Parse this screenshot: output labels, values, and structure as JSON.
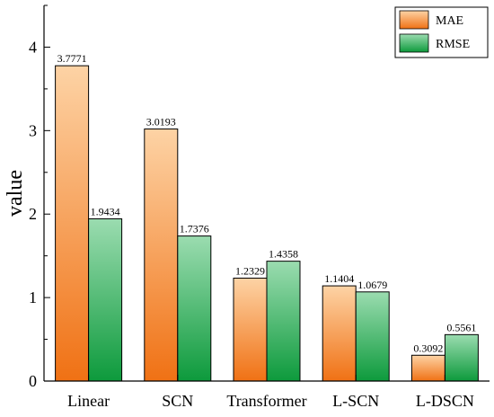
{
  "chart_data": {
    "type": "bar",
    "categories": [
      "Linear",
      "SCN",
      "Transformer",
      "L-SCN",
      "L-DSCN"
    ],
    "series": [
      {
        "name": "MAE",
        "values": [
          3.7771,
          3.0193,
          1.2329,
          1.1404,
          0.3092
        ],
        "color_light": "#fdd3a5",
        "color_dark": "#f07114"
      },
      {
        "name": "RMSE",
        "values": [
          1.9434,
          1.7376,
          1.4358,
          1.0679,
          0.5561
        ],
        "color_light": "#9bdcb0",
        "color_dark": "#0d9a3c"
      }
    ],
    "ylabel": "value",
    "ylim": [
      0,
      4.5
    ],
    "yticks": [
      "0",
      "1",
      "2",
      "3",
      "4"
    ],
    "grid": false,
    "legend_position": "top-right"
  }
}
